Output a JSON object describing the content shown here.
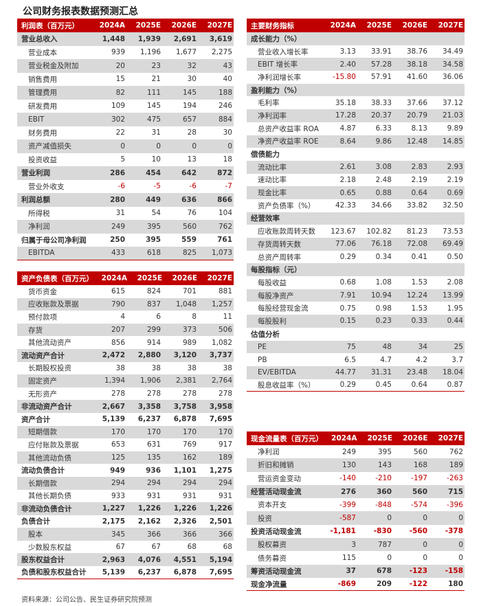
{
  "title": "公司财务报表数据预测汇总",
  "source": "资料来源：公司公告、民生证券研究院预测",
  "colors": {
    "header": "#c00000",
    "shade": "#d9d9d9",
    "negative": "#c00000"
  },
  "tables": [
    {
      "id": "income",
      "header": "利润表（百万元）",
      "years": [
        "2024A",
        "2025E",
        "2026E",
        "2027E"
      ],
      "rows": [
        [
          "营业总收入",
          [
            "1,448",
            "1,939",
            "2,691",
            "3,619"
          ],
          1
        ],
        [
          "营业成本",
          [
            "939",
            "1,196",
            "1,677",
            "2,275"
          ],
          0
        ],
        [
          "营业税金及附加",
          [
            "20",
            "23",
            "32",
            "43"
          ],
          0
        ],
        [
          "销售费用",
          [
            "15",
            "21",
            "30",
            "40"
          ],
          0
        ],
        [
          "管理费用",
          [
            "82",
            "111",
            "145",
            "188"
          ],
          0
        ],
        [
          "研发费用",
          [
            "109",
            "145",
            "194",
            "246"
          ],
          0
        ],
        [
          "EBIT",
          [
            "302",
            "475",
            "657",
            "884"
          ],
          0
        ],
        [
          "财务费用",
          [
            "22",
            "31",
            "28",
            "30"
          ],
          0
        ],
        [
          "资产减值损失",
          [
            "0",
            "0",
            "0",
            "0"
          ],
          0
        ],
        [
          "投资收益",
          [
            "5",
            "10",
            "13",
            "18"
          ],
          0
        ],
        [
          "营业利润",
          [
            "286",
            "454",
            "642",
            "872"
          ],
          1
        ],
        [
          "营业外收支",
          [
            "-6",
            "-5",
            "-6",
            "-7"
          ],
          0
        ],
        [
          "利润总额",
          [
            "280",
            "449",
            "636",
            "866"
          ],
          1
        ],
        [
          "所得税",
          [
            "31",
            "54",
            "76",
            "104"
          ],
          0
        ],
        [
          "净利润",
          [
            "249",
            "395",
            "560",
            "762"
          ],
          0
        ],
        [
          "归属于母公司净利润",
          [
            "250",
            "395",
            "559",
            "761"
          ],
          1
        ],
        [
          "EBITDA",
          [
            "433",
            "618",
            "825",
            "1,073"
          ],
          0
        ]
      ]
    },
    {
      "id": "balance",
      "header": "资产负债表（百万元）",
      "years": [
        "2024A",
        "2025E",
        "2026E",
        "2027E"
      ],
      "rows": [
        [
          "货币资金",
          [
            "615",
            "824",
            "701",
            "881"
          ],
          0
        ],
        [
          "应收账款及票据",
          [
            "790",
            "837",
            "1,048",
            "1,257"
          ],
          0
        ],
        [
          "预付款项",
          [
            "4",
            "6",
            "8",
            "11"
          ],
          0
        ],
        [
          "存货",
          [
            "207",
            "299",
            "373",
            "506"
          ],
          0
        ],
        [
          "其他流动资产",
          [
            "856",
            "914",
            "989",
            "1,082"
          ],
          0
        ],
        [
          "流动资产合计",
          [
            "2,472",
            "2,880",
            "3,120",
            "3,737"
          ],
          1
        ],
        [
          "长期股权投资",
          [
            "38",
            "38",
            "38",
            "38"
          ],
          0
        ],
        [
          "固定资产",
          [
            "1,394",
            "1,906",
            "2,381",
            "2,764"
          ],
          0
        ],
        [
          "无形资产",
          [
            "278",
            "278",
            "278",
            "278"
          ],
          0
        ],
        [
          "非流动资产合计",
          [
            "2,667",
            "3,358",
            "3,758",
            "3,958"
          ],
          1
        ],
        [
          "资产合计",
          [
            "5,139",
            "6,237",
            "6,878",
            "7,695"
          ],
          1
        ],
        [
          "短期借款",
          [
            "170",
            "170",
            "170",
            "170"
          ],
          0
        ],
        [
          "应付账款及票据",
          [
            "653",
            "631",
            "769",
            "917"
          ],
          0
        ],
        [
          "其他流动负债",
          [
            "125",
            "135",
            "162",
            "189"
          ],
          0
        ],
        [
          "流动负债合计",
          [
            "949",
            "936",
            "1,101",
            "1,275"
          ],
          1
        ],
        [
          "长期借款",
          [
            "294",
            "294",
            "294",
            "294"
          ],
          0
        ],
        [
          "其他长期负债",
          [
            "933",
            "931",
            "931",
            "931"
          ],
          0
        ],
        [
          "非流动负债合计",
          [
            "1,227",
            "1,226",
            "1,226",
            "1,226"
          ],
          1
        ],
        [
          "负债合计",
          [
            "2,175",
            "2,162",
            "2,326",
            "2,501"
          ],
          1
        ],
        [
          "股本",
          [
            "345",
            "366",
            "366",
            "366"
          ],
          0
        ],
        [
          "少数股东权益",
          [
            "67",
            "67",
            "68",
            "68"
          ],
          0
        ],
        [
          "股东权益合计",
          [
            "2,963",
            "4,076",
            "4,551",
            "5,194"
          ],
          1
        ],
        [
          "负债和股东权益合计",
          [
            "5,139",
            "6,237",
            "6,878",
            "7,695"
          ],
          1
        ]
      ]
    },
    {
      "id": "indicators",
      "header": "主要财务指标",
      "years": [
        "2024A",
        "2025E",
        "2026E",
        "2027E"
      ],
      "rows": [
        [
          "成长能力（%）",
          [],
          1
        ],
        [
          "营业收入增长率",
          [
            "3.13",
            "33.91",
            "38.76",
            "34.49"
          ],
          0
        ],
        [
          "EBIT 增长率",
          [
            "2.40",
            "57.28",
            "38.18",
            "34.58"
          ],
          0
        ],
        [
          "净利润增长率",
          [
            "-15.80",
            "57.91",
            "41.60",
            "36.06"
          ],
          0
        ],
        [
          "盈利能力（%）",
          [],
          1
        ],
        [
          "毛利率",
          [
            "35.18",
            "38.33",
            "37.66",
            "37.12"
          ],
          0
        ],
        [
          "净利润率",
          [
            "17.28",
            "20.37",
            "20.79",
            "21.03"
          ],
          0
        ],
        [
          "总资产收益率 ROA",
          [
            "4.87",
            "6.33",
            "8.13",
            "9.89"
          ],
          0
        ],
        [
          "净资产收益率 ROE",
          [
            "8.64",
            "9.86",
            "12.48",
            "14.85"
          ],
          0
        ],
        [
          "偿债能力",
          [],
          1
        ],
        [
          "流动比率",
          [
            "2.61",
            "3.08",
            "2.83",
            "2.93"
          ],
          0
        ],
        [
          "速动比率",
          [
            "2.18",
            "2.48",
            "2.19",
            "2.19"
          ],
          0
        ],
        [
          "现金比率",
          [
            "0.65",
            "0.88",
            "0.64",
            "0.69"
          ],
          0
        ],
        [
          "资产负债率（%）",
          [
            "42.33",
            "34.66",
            "33.82",
            "32.50"
          ],
          0
        ],
        [
          "经营效率",
          [],
          1
        ],
        [
          "应收账款周转天数",
          [
            "123.67",
            "102.82",
            "81.23",
            "73.53"
          ],
          0
        ],
        [
          "存货周转天数",
          [
            "77.06",
            "76.18",
            "72.08",
            "69.49"
          ],
          0
        ],
        [
          "总资产周转率",
          [
            "0.29",
            "0.34",
            "0.41",
            "0.50"
          ],
          0
        ],
        [
          "每股指标（元）",
          [],
          1
        ],
        [
          "每股收益",
          [
            "0.68",
            "1.08",
            "1.53",
            "2.08"
          ],
          0
        ],
        [
          "每股净资产",
          [
            "7.91",
            "10.94",
            "12.24",
            "13.99"
          ],
          0
        ],
        [
          "每股经营现金流",
          [
            "0.75",
            "0.98",
            "1.53",
            "1.95"
          ],
          0
        ],
        [
          "每股股利",
          [
            "0.15",
            "0.23",
            "0.33",
            "0.44"
          ],
          0
        ],
        [
          "估值分析",
          [],
          1
        ],
        [
          "PE",
          [
            "75",
            "48",
            "34",
            "25"
          ],
          0
        ],
        [
          "PB",
          [
            "6.5",
            "4.7",
            "4.2",
            "3.7"
          ],
          0
        ],
        [
          "EV/EBITDA",
          [
            "44.77",
            "31.31",
            "23.48",
            "18.04"
          ],
          0
        ],
        [
          "股息收益率（%）",
          [
            "0.29",
            "0.45",
            "0.64",
            "0.87"
          ],
          0
        ]
      ]
    },
    {
      "id": "cashflow",
      "header": "现金流量表（百万元）",
      "years": [
        "2024A",
        "2025E",
        "2026E",
        "2027E"
      ],
      "rows": [
        [
          "净利润",
          [
            "249",
            "395",
            "560",
            "762"
          ],
          0
        ],
        [
          "折旧和摊销",
          [
            "130",
            "143",
            "168",
            "189"
          ],
          0
        ],
        [
          "营运资金变动",
          [
            "-140",
            "-210",
            "-197",
            "-263"
          ],
          0
        ],
        [
          "经营活动现金流",
          [
            "276",
            "360",
            "560",
            "715"
          ],
          1
        ],
        [
          "资本开支",
          [
            "-399",
            "-848",
            "-574",
            "-396"
          ],
          0
        ],
        [
          "投资",
          [
            "-587",
            "0",
            "0",
            "0"
          ],
          0
        ],
        [
          "投资活动现金流",
          [
            "-1,181",
            "-830",
            "-560",
            "-378"
          ],
          1
        ],
        [
          "股权募资",
          [
            "3",
            "787",
            "0",
            "0"
          ],
          0
        ],
        [
          "债务募资",
          [
            "115",
            "0",
            "0",
            "0"
          ],
          0
        ],
        [
          "筹资活动现金流",
          [
            "37",
            "678",
            "-123",
            "-158"
          ],
          1
        ],
        [
          "现金净流量",
          [
            "-869",
            "209",
            "-122",
            "180"
          ],
          1
        ]
      ]
    }
  ]
}
